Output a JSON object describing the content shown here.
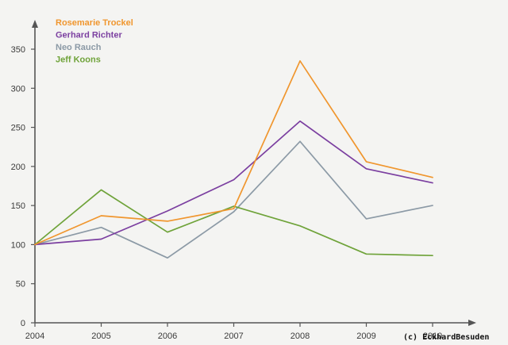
{
  "chart_data": {
    "type": "line",
    "title": "",
    "xlabel": "",
    "ylabel": "",
    "x": [
      "2004",
      "2005",
      "2006",
      "2007",
      "2008",
      "2009",
      "2010"
    ],
    "ylim": [
      0,
      370
    ],
    "yticks": [
      0,
      50,
      100,
      150,
      200,
      250,
      300,
      350
    ],
    "grid": false,
    "legend_position": "top-left",
    "series": [
      {
        "name": "Rosemarie Trockel",
        "color": "#f0962e",
        "values": [
          100,
          137,
          130,
          146,
          335,
          206,
          186
        ]
      },
      {
        "name": "Gerhard Richter",
        "color": "#7b3fa0",
        "values": [
          100,
          107,
          143,
          183,
          258,
          197,
          179
        ]
      },
      {
        "name": "Neo Rauch",
        "color": "#8c9aa6",
        "values": [
          100,
          122,
          83,
          142,
          232,
          133,
          150
        ]
      },
      {
        "name": "Jeff Koons",
        "color": "#6fa33a",
        "values": [
          100,
          170,
          116,
          149,
          124,
          88,
          86
        ]
      }
    ]
  },
  "credit": "(c) EckhardBesuden"
}
